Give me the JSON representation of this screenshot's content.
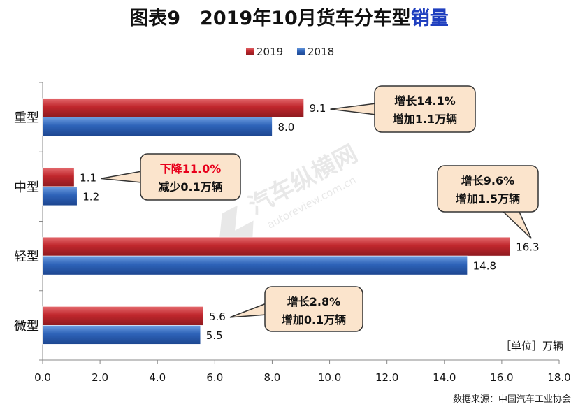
{
  "title": {
    "figure": "图表9",
    "main": "2019年10月货车分车型",
    "highlight": "销量"
  },
  "unit_note": "［单位］万辆",
  "source": "数据来源：中国汽车工业协会",
  "watermark": {
    "name": "汽车纵横网",
    "url": "autoreview.com.cn"
  },
  "colors": {
    "series_2019": "#c0272d",
    "series_2018": "#2e63b8",
    "callout_bg": "#fbe4cc",
    "callout_border": "#333333",
    "highlight_red": "#e8001c"
  },
  "chart_data": {
    "type": "bar",
    "orientation": "horizontal",
    "categories": [
      "重型",
      "中型",
      "轻型",
      "微型"
    ],
    "series": [
      {
        "name": "2019",
        "values": [
          9.1,
          1.1,
          16.3,
          5.6
        ]
      },
      {
        "name": "2018",
        "values": [
          8.0,
          1.2,
          14.8,
          5.5
        ]
      }
    ],
    "data_labels": {
      "2019": [
        "9.1",
        "1.1",
        "16.3",
        "5.6"
      ],
      "2018": [
        "8.0",
        "1.2",
        "14.8",
        "5.5"
      ]
    },
    "xlim": [
      0,
      18
    ],
    "xticks": [
      "0.0",
      "2.0",
      "4.0",
      "6.0",
      "8.0",
      "10.0",
      "12.0",
      "14.0",
      "16.0",
      "18.0"
    ],
    "legend_position": "top",
    "annotations": [
      {
        "category": "重型",
        "line1": "增长14.1%",
        "line2": "增加1.1万辆",
        "line1_red": false
      },
      {
        "category": "中型",
        "line1": "下降11.0%",
        "line2": "减少0.1万辆",
        "line1_red": true
      },
      {
        "category": "轻型",
        "line1": "增长9.6%",
        "line2": "增加1.5万辆",
        "line1_red": false
      },
      {
        "category": "微型",
        "line1": "增长2.8%",
        "line2": "增加0.1万辆",
        "line1_red": false
      }
    ]
  }
}
